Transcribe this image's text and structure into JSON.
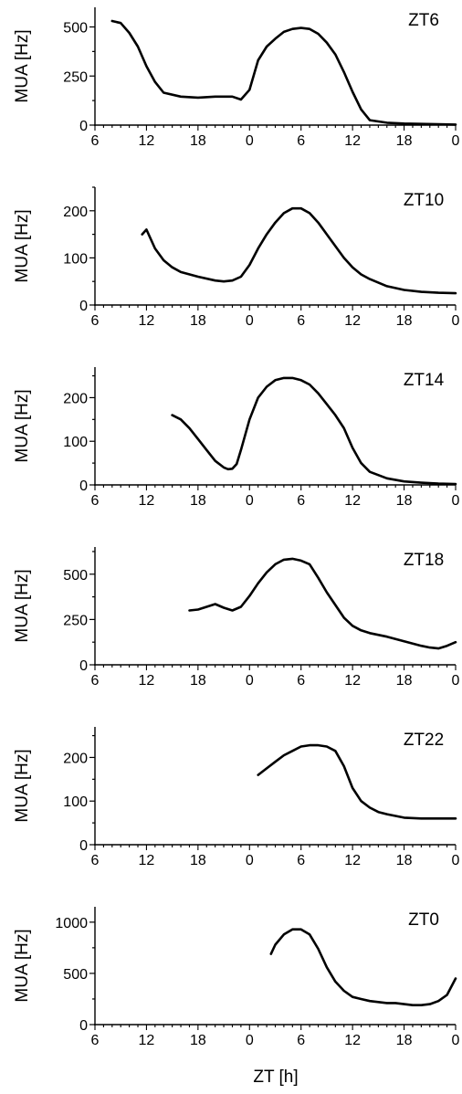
{
  "chart_data": {
    "type": "line",
    "xlabel": "ZT [h]",
    "x_tick_labels": [
      "6",
      "12",
      "18",
      "0",
      "6",
      "12",
      "18",
      "0"
    ],
    "xlim_hours": [
      6,
      48
    ],
    "panels": [
      {
        "title": "ZT6",
        "ylabel": "MUA [Hz]",
        "ylim": [
          0,
          600
        ],
        "yticks": [
          0,
          250,
          500
        ],
        "series": [
          {
            "x": [
              8,
              9,
              10,
              11,
              12,
              13,
              14,
              16,
              18,
              20,
              22,
              23,
              24,
              25,
              26,
              27,
              28,
              29,
              30,
              31,
              32,
              33,
              34,
              35,
              36,
              37,
              38,
              40,
              42,
              44,
              46,
              48
            ],
            "y": [
              530,
              520,
              470,
              400,
              300,
              220,
              165,
              145,
              140,
              145,
              145,
              130,
              180,
              330,
              400,
              440,
              475,
              490,
              495,
              490,
              465,
              420,
              360,
              270,
              170,
              80,
              25,
              12,
              8,
              6,
              4,
              3
            ]
          }
        ]
      },
      {
        "title": "ZT10",
        "ylabel": "MUA [Hz]",
        "ylim": [
          0,
          250
        ],
        "yticks": [
          0,
          100,
          200
        ],
        "series": [
          {
            "x": [
              11.5,
              12,
              13,
              14,
              15,
              16,
              18,
              20,
              21,
              22,
              23,
              24,
              25,
              26,
              27,
              28,
              29,
              30,
              31,
              32,
              33,
              34,
              35,
              36,
              37,
              38,
              40,
              42,
              44,
              46,
              48
            ],
            "y": [
              150,
              160,
              120,
              95,
              80,
              70,
              60,
              52,
              50,
              52,
              60,
              85,
              120,
              150,
              175,
              195,
              205,
              205,
              195,
              175,
              150,
              125,
              100,
              80,
              65,
              55,
              40,
              32,
              28,
              26,
              25
            ]
          }
        ]
      },
      {
        "title": "ZT14",
        "ylabel": "MUA [Hz]",
        "ylim": [
          0,
          270
        ],
        "yticks": [
          0,
          100,
          200
        ],
        "series": [
          {
            "x": [
              15,
              16,
              17,
              18,
              19,
              20,
              21,
              21.5,
              22,
              22.5,
              23,
              24,
              25,
              26,
              27,
              28,
              29,
              30,
              31,
              32,
              33,
              34,
              35,
              36,
              37,
              38,
              40,
              42,
              44,
              46,
              48
            ],
            "y": [
              160,
              150,
              130,
              105,
              80,
              55,
              40,
              36,
              37,
              48,
              80,
              150,
              200,
              225,
              240,
              245,
              245,
              240,
              230,
              210,
              185,
              160,
              130,
              85,
              50,
              30,
              15,
              8,
              5,
              3,
              2
            ]
          }
        ]
      },
      {
        "title": "ZT18",
        "ylabel": "MUA [Hz]",
        "ylim": [
          0,
          650
        ],
        "yticks": [
          0,
          250,
          500
        ],
        "series": [
          {
            "x": [
              17,
              18,
              19,
              20,
              21,
              22,
              23,
              24,
              25,
              26,
              27,
              28,
              29,
              30,
              31,
              32,
              33,
              34,
              35,
              36,
              37,
              38,
              40,
              42,
              44,
              45,
              46,
              47,
              48
            ],
            "y": [
              300,
              305,
              320,
              335,
              315,
              300,
              320,
              380,
              450,
              510,
              555,
              580,
              585,
              575,
              555,
              480,
              400,
              330,
              260,
              215,
              190,
              175,
              155,
              130,
              105,
              95,
              90,
              105,
              125
            ]
          }
        ]
      },
      {
        "title": "ZT22",
        "ylabel": "MUA [Hz]",
        "ylim": [
          0,
          270
        ],
        "yticks": [
          0,
          100,
          200
        ],
        "series": [
          {
            "x": [
              25,
              26,
              27,
              28,
              29,
              30,
              31,
              32,
              33,
              34,
              35,
              36,
              37,
              38,
              39,
              40,
              42,
              44,
              46,
              48
            ],
            "y": [
              160,
              175,
              190,
              205,
              215,
              225,
              228,
              228,
              225,
              215,
              180,
              130,
              100,
              85,
              75,
              70,
              62,
              60,
              60,
              60
            ]
          }
        ]
      },
      {
        "title": "ZT0",
        "ylabel": "MUA [Hz]",
        "ylim": [
          0,
          1150
        ],
        "yticks": [
          0,
          500,
          1000
        ],
        "series": [
          {
            "x": [
              26.5,
              27,
              28,
              29,
              30,
              31,
              32,
              33,
              34,
              35,
              36,
              37,
              38,
              39,
              40,
              41,
              42,
              43,
              44,
              45,
              46,
              47,
              47.5,
              48
            ],
            "y": [
              690,
              780,
              880,
              930,
              930,
              880,
              740,
              560,
              420,
              330,
              270,
              250,
              230,
              220,
              210,
              210,
              200,
              190,
              190,
              200,
              230,
              290,
              370,
              450
            ]
          }
        ]
      }
    ]
  }
}
